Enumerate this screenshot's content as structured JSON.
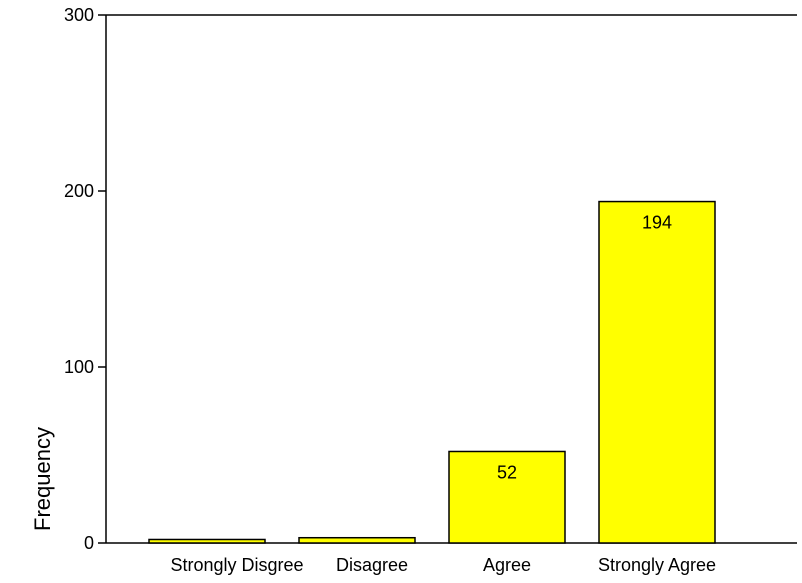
{
  "chart_data": {
    "type": "bar",
    "categories": [
      "Strongly Disgree",
      "Disagree",
      "Agree",
      "Strongly Agree"
    ],
    "values": [
      2,
      3,
      52,
      194
    ],
    "data_labels": [
      "",
      "",
      "52",
      "194"
    ],
    "title": "",
    "xlabel": "",
    "ylabel": "Frequency",
    "ylim": [
      0,
      300
    ],
    "yticks": [
      0,
      100,
      200,
      300
    ],
    "ytick_labels": [
      "0",
      "100",
      "200",
      "300"
    ],
    "grid": false,
    "legend": "none",
    "bar_color": "#ffff00",
    "bar_edge_color": "#000000"
  }
}
